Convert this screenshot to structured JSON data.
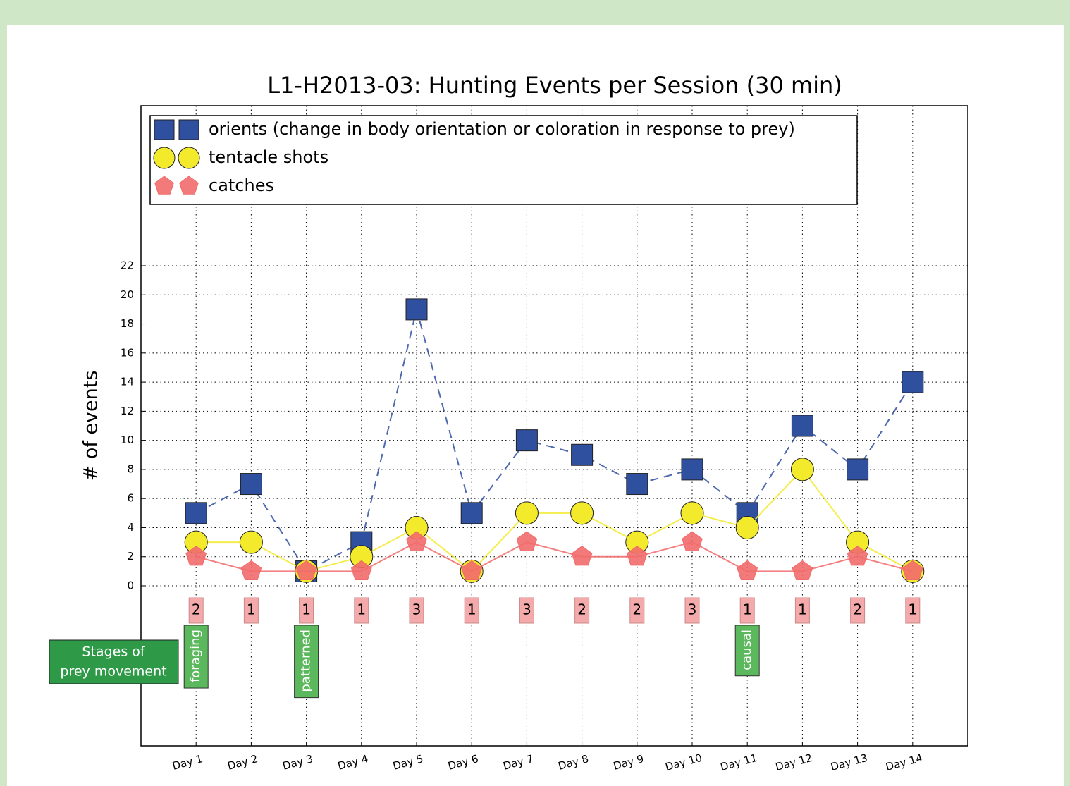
{
  "chart_data": {
    "type": "line",
    "title": "L1-H2013-03: Hunting Events per Session (30 min)",
    "ylabel": "# of events",
    "categories": [
      "Day 1",
      "Day 2",
      "Day 3",
      "Day 4",
      "Day 5",
      "Day 6",
      "Day 7",
      "Day 8",
      "Day 9",
      "Day 10",
      "Day 11",
      "Day 12",
      "Day 13",
      "Day 14"
    ],
    "series": [
      {
        "name": "orients (change in body orientation or coloration in response to prey)",
        "color": "#2f4f9f",
        "linestyle": "dashed",
        "marker": "square",
        "values": [
          5,
          7,
          1,
          3,
          19,
          5,
          10,
          9,
          7,
          8,
          5,
          11,
          8,
          14
        ]
      },
      {
        "name": "tentacle shots",
        "color": "#f3ea2c",
        "linestyle": "solid",
        "marker": "circle",
        "values": [
          3,
          3,
          1,
          2,
          4,
          1,
          5,
          5,
          3,
          5,
          4,
          8,
          3,
          1
        ]
      },
      {
        "name": "catches",
        "color": "#f26b6b",
        "linestyle": "solid",
        "marker": "pentagon",
        "values": [
          2,
          1,
          1,
          1,
          3,
          1,
          3,
          2,
          2,
          3,
          1,
          1,
          2,
          1
        ]
      }
    ],
    "ylim": [
      -11,
      33
    ],
    "yticks": [
      0,
      2,
      4,
      6,
      8,
      10,
      12,
      14,
      16,
      18,
      20,
      22
    ],
    "grid": true,
    "legend": "upper left",
    "stages_label": [
      "Stages of",
      "prey movement"
    ],
    "annotations": [
      {
        "text": "foraging",
        "x": "Day 1"
      },
      {
        "text": "patterned",
        "x": "Day 3"
      },
      {
        "text": "causal",
        "x": "Day 11"
      }
    ]
  }
}
